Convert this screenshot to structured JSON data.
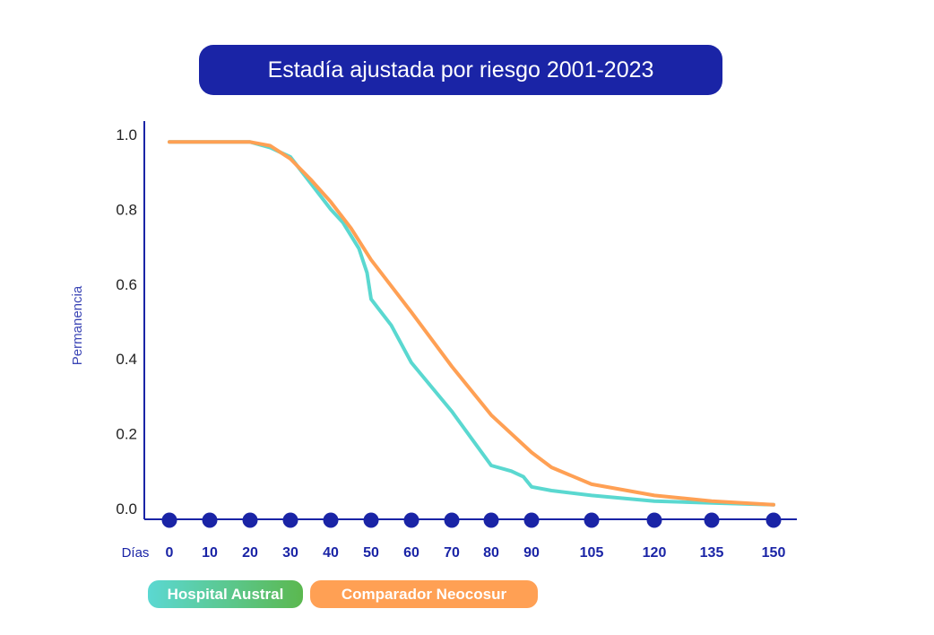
{
  "chart_data": {
    "type": "line",
    "title": "Estadía ajustada por riesgo 2001-2023",
    "xlabel": "Días",
    "ylabel": "Permanencia",
    "x_ticks": [
      0,
      10,
      20,
      30,
      40,
      50,
      60,
      70,
      80,
      90,
      105,
      120,
      135,
      150
    ],
    "y_ticks": [
      "0.0",
      "0.2",
      "0.4",
      "0.6",
      "0.8",
      "1.0"
    ],
    "ylim": [
      0,
      1
    ],
    "xlim": [
      0,
      150
    ],
    "grid": false,
    "legend_position": "bottom-left",
    "series": [
      {
        "name": "Hospital Austral",
        "color": "#5ad8d0",
        "x": [
          0,
          20,
          25,
          30,
          35,
          40,
          43,
          47,
          49,
          50,
          55,
          60,
          70,
          80,
          85,
          88,
          90,
          95,
          105,
          120,
          135,
          150
        ],
        "y": [
          0.98,
          0.98,
          0.965,
          0.94,
          0.87,
          0.8,
          0.765,
          0.695,
          0.63,
          0.56,
          0.49,
          0.39,
          0.26,
          0.115,
          0.1,
          0.085,
          0.058,
          0.048,
          0.035,
          0.02,
          0.015,
          0.01
        ]
      },
      {
        "name": "Comparador Neocosur",
        "color": "#ffa054",
        "x": [
          0,
          20,
          25,
          30,
          35,
          40,
          45,
          50,
          60,
          70,
          80,
          90,
          95,
          105,
          120,
          135,
          150
        ],
        "y": [
          0.98,
          0.98,
          0.97,
          0.935,
          0.88,
          0.82,
          0.75,
          0.665,
          0.525,
          0.38,
          0.25,
          0.15,
          0.11,
          0.065,
          0.035,
          0.02,
          0.01
        ]
      }
    ]
  }
}
